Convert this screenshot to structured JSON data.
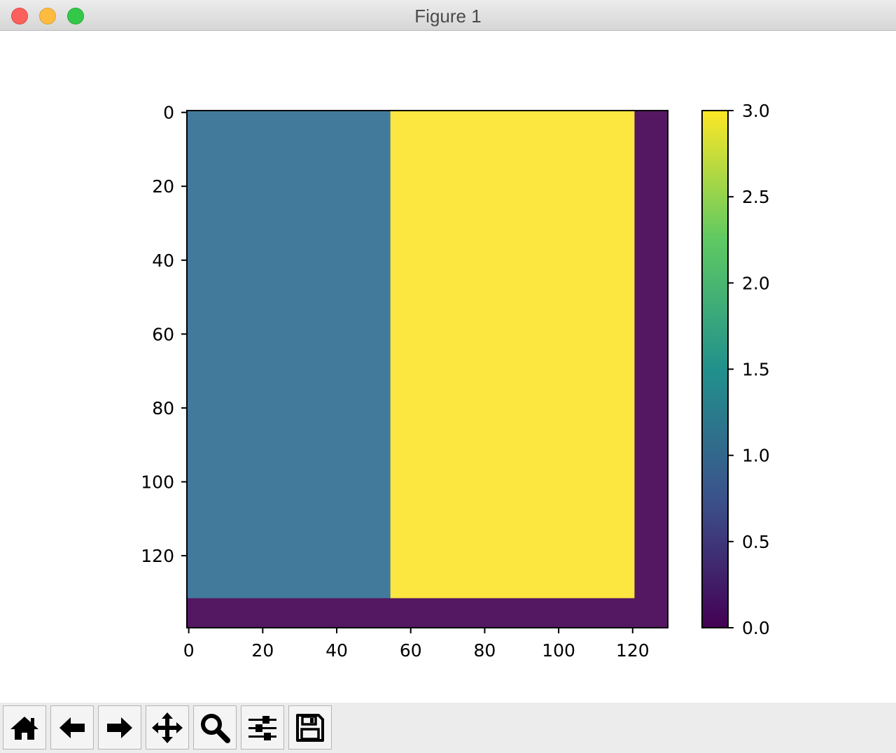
{
  "window": {
    "title": "Figure 1"
  },
  "toolbar": {
    "buttons": [
      {
        "name": "home-button",
        "icon": "home-icon"
      },
      {
        "name": "back-button",
        "icon": "arrow-left-icon"
      },
      {
        "name": "forward-button",
        "icon": "arrow-right-icon"
      },
      {
        "name": "pan-button",
        "icon": "move-icon"
      },
      {
        "name": "zoom-button",
        "icon": "magnifier-icon"
      },
      {
        "name": "subplots-button",
        "icon": "sliders-icon"
      },
      {
        "name": "save-button",
        "icon": "floppy-disk-icon"
      }
    ]
  },
  "chart_data": {
    "type": "heatmap",
    "title": "",
    "xlabel": "",
    "ylabel": "",
    "colormap": "viridis",
    "image_extent": {
      "x": [
        -0.5,
        129.5
      ],
      "y": [
        139.5,
        -0.5
      ]
    },
    "xlim": [
      -0.5,
      129.5
    ],
    "ylim": [
      139.5,
      -0.5
    ],
    "regions": [
      {
        "x": [
          -0.5,
          129.5
        ],
        "y": [
          -0.5,
          139.5
        ],
        "value": 0.0,
        "color": "#541862"
      },
      {
        "x": [
          -0.5,
          54.5
        ],
        "y": [
          -0.5,
          131.5
        ],
        "value": 1.0,
        "color": "#427a9c"
      },
      {
        "x": [
          54.5,
          120.5
        ],
        "y": [
          -0.5,
          131.5
        ],
        "value": 3.0,
        "color": "#fce640"
      }
    ],
    "x_ticks": [
      0,
      20,
      40,
      60,
      80,
      100,
      120
    ],
    "x_tick_labels": [
      "0",
      "20",
      "40",
      "60",
      "80",
      "100",
      "120"
    ],
    "y_ticks": [
      0,
      20,
      40,
      60,
      80,
      100,
      120
    ],
    "y_tick_labels": [
      "0",
      "20",
      "40",
      "60",
      "80",
      "100",
      "120"
    ],
    "colorbar": {
      "min": 0.0,
      "max": 3.0,
      "ticks": [
        0.0,
        0.5,
        1.0,
        1.5,
        2.0,
        2.5,
        3.0
      ],
      "tick_labels": [
        "0.0",
        "0.5",
        "1.0",
        "1.5",
        "2.0",
        "2.5",
        "3.0"
      ],
      "colors": [
        "#440154",
        "#3b528b",
        "#21918c",
        "#5ec962",
        "#fde725"
      ]
    }
  }
}
